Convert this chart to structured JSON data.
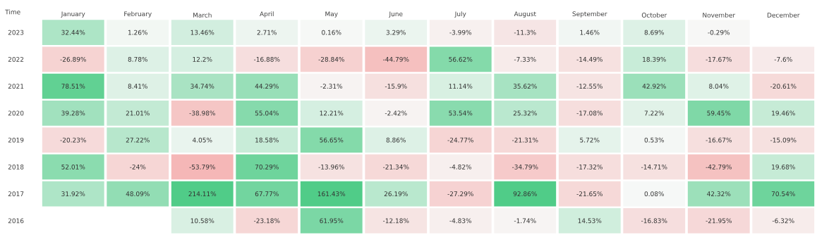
{
  "chart_data": {
    "type": "heatmap",
    "ylabel": "Time",
    "categories": [
      "January",
      "February",
      "March",
      "April",
      "May",
      "June",
      "July",
      "August",
      "September",
      "October",
      "November",
      "December"
    ],
    "y_categories": [
      "2023",
      "2022",
      "2021",
      "2020",
      "2019",
      "2018",
      "2017",
      "2016"
    ],
    "cells": [
      [
        32.44,
        1.26,
        13.46,
        2.71,
        0.16,
        3.29,
        -3.99,
        -11.3,
        1.46,
        8.69,
        -0.29,
        null
      ],
      [
        -26.89,
        8.78,
        12.2,
        -16.88,
        -28.84,
        -44.79,
        56.62,
        -7.33,
        -14.49,
        18.39,
        -17.67,
        -7.6
      ],
      [
        78.51,
        8.41,
        34.74,
        44.29,
        -2.31,
        -15.9,
        11.14,
        35.62,
        -12.55,
        42.92,
        8.04,
        -20.61
      ],
      [
        39.28,
        21.01,
        -38.98,
        55.04,
        12.21,
        -2.42,
        53.54,
        25.32,
        -17.08,
        7.22,
        59.45,
        19.46
      ],
      [
        -20.23,
        27.22,
        4.05,
        18.58,
        56.65,
        8.86,
        -24.77,
        -21.31,
        5.72,
        0.53,
        -16.67,
        -15.09
      ],
      [
        52.01,
        -24,
        -53.79,
        70.29,
        -13.96,
        -21.34,
        -4.82,
        -34.79,
        -17.32,
        -14.71,
        -42.79,
        19.68
      ],
      [
        31.92,
        48.09,
        214.11,
        67.77,
        161.43,
        26.19,
        -27.29,
        92.86,
        -21.65,
        0.08,
        42.32,
        70.54
      ],
      [
        null,
        null,
        10.58,
        -23.18,
        61.95,
        -12.18,
        -4.83,
        -1.74,
        14.53,
        -16.83,
        -21.95,
        -6.32
      ]
    ],
    "cell_labels": [
      [
        "32.44%",
        "1.26%",
        "13.46%",
        "2.71%",
        "0.16%",
        "3.29%",
        "-3.99%",
        "-11.3%",
        "1.46%",
        "8.69%",
        "-0.29%",
        null
      ],
      [
        "-26.89%",
        "8.78%",
        "12.2%",
        "-16.88%",
        "-28.84%",
        "-44.79%",
        "56.62%",
        "-7.33%",
        "-14.49%",
        "18.39%",
        "-17.67%",
        "-7.6%"
      ],
      [
        "78.51%",
        "8.41%",
        "34.74%",
        "44.29%",
        "-2.31%",
        "-15.9%",
        "11.14%",
        "35.62%",
        "-12.55%",
        "42.92%",
        "8.04%",
        "-20.61%"
      ],
      [
        "39.28%",
        "21.01%",
        "-38.98%",
        "55.04%",
        "12.21%",
        "-2.42%",
        "53.54%",
        "25.32%",
        "-17.08%",
        "7.22%",
        "59.45%",
        "19.46%"
      ],
      [
        "-20.23%",
        "27.22%",
        "4.05%",
        "18.58%",
        "56.65%",
        "8.86%",
        "-24.77%",
        "-21.31%",
        "5.72%",
        "0.53%",
        "-16.67%",
        "-15.09%"
      ],
      [
        "52.01%",
        "-24%",
        "-53.79%",
        "70.29%",
        "-13.96%",
        "-21.34%",
        "-4.82%",
        "-34.79%",
        "-17.32%",
        "-14.71%",
        "-42.79%",
        "19.68%"
      ],
      [
        "31.92%",
        "48.09%",
        "214.11%",
        "67.77%",
        "161.43%",
        "26.19%",
        "-27.29%",
        "92.86%",
        "-21.65%",
        "0.08%",
        "42.32%",
        "70.54%"
      ],
      [
        null,
        null,
        "10.58%",
        "-23.18%",
        "61.95%",
        "-12.18%",
        "-4.83%",
        "-1.74%",
        "14.53%",
        "-16.83%",
        "-21.95%",
        "-6.32%"
      ]
    ]
  }
}
